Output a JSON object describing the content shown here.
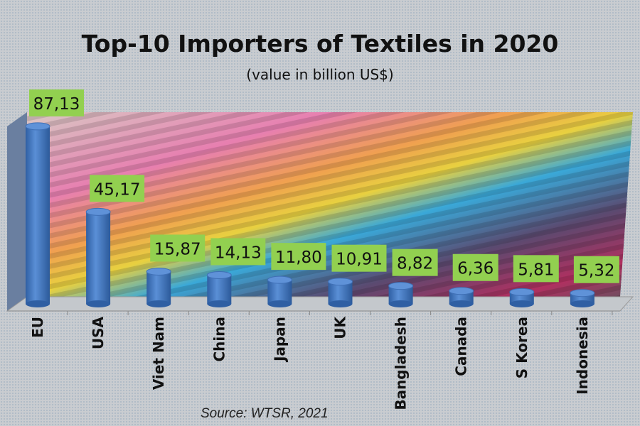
{
  "chart_data": {
    "type": "bar",
    "title": "Top-10 Importers of Textiles in 2020",
    "subtitle": "(value in billion US$)",
    "categories": [
      "EU",
      "USA",
      "Viet Nam",
      "China",
      "Japan",
      "UK",
      "Bangladesh",
      "Canada",
      "S Korea",
      "Indonesia"
    ],
    "values": [
      87.13,
      45.17,
      15.87,
      14.13,
      11.8,
      10.91,
      8.82,
      6.36,
      5.81,
      5.32
    ],
    "data_labels": [
      "87,13",
      "45,17",
      "15,87",
      "14,13",
      "11,80",
      "10,91",
      "8,82",
      "6,36",
      "5,81",
      "5,32"
    ],
    "source": "Source: WTSR, 2021",
    "bar_style": "3d-cylinder",
    "grid": false,
    "legend": "none",
    "colors": {
      "bar": "#4a7cc4",
      "label_bg": "#92d050"
    }
  }
}
